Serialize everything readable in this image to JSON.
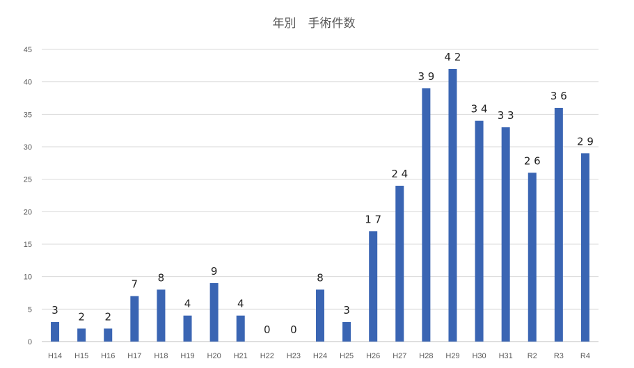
{
  "chart_data": {
    "type": "bar",
    "title": "年別　手術件数",
    "xlabel": "",
    "ylabel": "",
    "ylim": [
      0,
      45
    ],
    "yticks": [
      0,
      5,
      10,
      15,
      20,
      25,
      30,
      35,
      40,
      45
    ],
    "categories": [
      "H14",
      "H15",
      "H16",
      "H17",
      "H18",
      "H19",
      "H20",
      "H21",
      "H22",
      "H23",
      "H24",
      "H25",
      "H26",
      "H27",
      "H28",
      "H29",
      "H30",
      "H31",
      "R2",
      "R3",
      "R4"
    ],
    "values": [
      3,
      2,
      2,
      7,
      8,
      4,
      9,
      4,
      0,
      0,
      8,
      3,
      17,
      24,
      39,
      42,
      34,
      33,
      26,
      36,
      29
    ],
    "data_labels": [
      "3",
      "2",
      "2",
      "7",
      "8",
      "4",
      "9",
      "4",
      "0",
      "0",
      "8",
      "3",
      "1 7",
      "2 4",
      "3 9",
      "4 2",
      "3 4",
      "3 3",
      "2 6",
      "3 6",
      "2 9"
    ],
    "bar_color": "#3a65b3",
    "grid": true,
    "legend": "none"
  }
}
